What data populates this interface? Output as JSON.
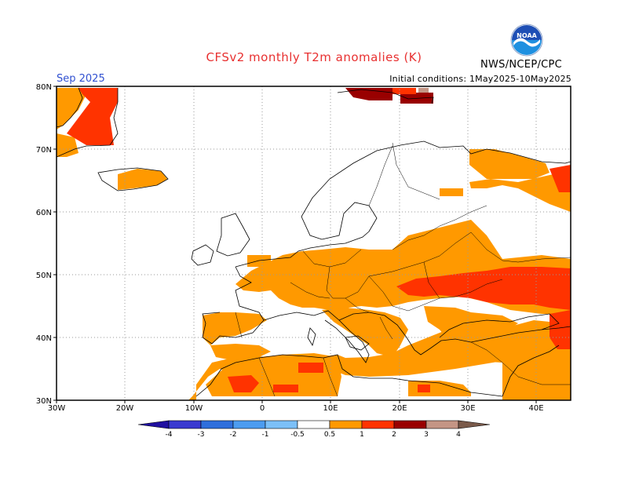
{
  "header": {
    "title": "CFSv2 monthly T2m anomalies (K)",
    "month": "Sep 2025",
    "initial_conditions": "Initial conditions: 1May2025-10May2025",
    "agency": "NWS/NCEP/CPC",
    "logo_text": "NOAA"
  },
  "map": {
    "lat_labels": [
      "80N",
      "70N",
      "60N",
      "50N",
      "40N",
      "30N"
    ],
    "lon_labels": [
      "30W",
      "20W",
      "10W",
      "0",
      "10E",
      "20E",
      "30E",
      "40E"
    ],
    "colors": {
      "c05": "#ff9900",
      "c1": "#ff3300",
      "c2": "#990000",
      "c3": "#c49585",
      "land_line": "#000000"
    }
  },
  "colorbar": {
    "labels": [
      "-4",
      "-3",
      "-2",
      "-1",
      "-0.5",
      "0.5",
      "1",
      "2",
      "3",
      "4"
    ],
    "colors": [
      "#2010a0",
      "#3a3ad0",
      "#2f6fdc",
      "#4c9cf0",
      "#7cc0f8",
      "#ffffff",
      "#ff9900",
      "#ff3300",
      "#990000",
      "#c49585",
      "#7a5a4a"
    ]
  }
}
